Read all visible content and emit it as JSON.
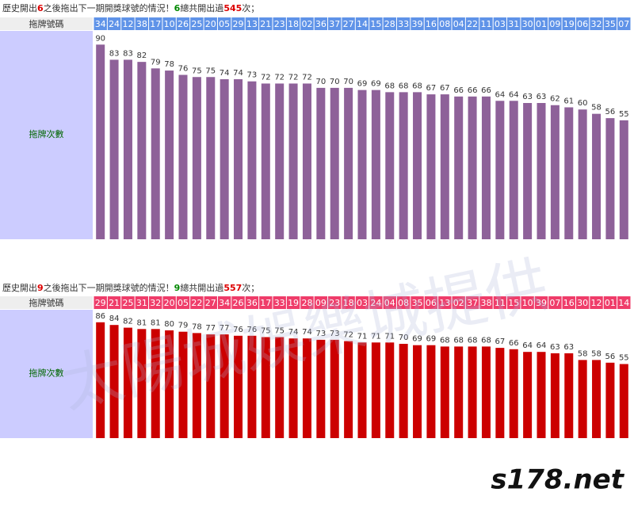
{
  "chart_data": [
    {
      "type": "bar",
      "title": [
        {
          "text": "歷史開出",
          "color": "#333333"
        },
        {
          "text": "6",
          "color": "#dd0000"
        },
        {
          "text": "之後拖出下一期開獎球號的情況！",
          "color": "#333333"
        },
        {
          "text": "6",
          "color": "#008800"
        },
        {
          "text": "總共開出過",
          "color": "#333333"
        },
        {
          "text": "545",
          "color": "#dd0000"
        },
        {
          "text": "次；",
          "color": "#333333"
        }
      ],
      "row_label": "拖牌號碼",
      "value_label": "拖牌次數",
      "categories": [
        "34",
        "24",
        "12",
        "38",
        "17",
        "10",
        "26",
        "25",
        "20",
        "05",
        "29",
        "13",
        "21",
        "23",
        "18",
        "02",
        "36",
        "37",
        "27",
        "14",
        "15",
        "28",
        "33",
        "39",
        "16",
        "08",
        "04",
        "22",
        "11",
        "03",
        "31",
        "30",
        "01",
        "09",
        "19",
        "06",
        "32",
        "35",
        "07"
      ],
      "values": [
        90,
        83,
        83,
        82,
        79,
        78,
        76,
        75,
        75,
        74,
        74,
        73,
        72,
        72,
        72,
        72,
        70,
        70,
        70,
        69,
        69,
        68,
        68,
        68,
        67,
        67,
        66,
        66,
        66,
        64,
        64,
        63,
        63,
        62,
        61,
        60,
        58,
        56,
        55
      ],
      "color": "#8e6199",
      "header_color": "#5f93e8"
    },
    {
      "type": "bar",
      "title": [
        {
          "text": "歷史開出",
          "color": "#333333"
        },
        {
          "text": "9",
          "color": "#dd0000"
        },
        {
          "text": "之後拖出下一期開獎球號的情況！",
          "color": "#333333"
        },
        {
          "text": "9",
          "color": "#008800"
        },
        {
          "text": "總共開出過",
          "color": "#333333"
        },
        {
          "text": "557",
          "color": "#dd0000"
        },
        {
          "text": "次；",
          "color": "#333333"
        }
      ],
      "row_label": "拖牌號碼",
      "value_label": "拖牌次數",
      "categories": [
        "29",
        "21",
        "25",
        "31",
        "32",
        "20",
        "05",
        "22",
        "27",
        "34",
        "26",
        "36",
        "17",
        "33",
        "19",
        "28",
        "09",
        "23",
        "18",
        "03",
        "24",
        "04",
        "08",
        "35",
        "06",
        "13",
        "02",
        "37",
        "38",
        "11",
        "15",
        "10",
        "39",
        "07",
        "16",
        "30",
        "12",
        "01",
        "14"
      ],
      "values": [
        86,
        84,
        82,
        81,
        81,
        80,
        79,
        78,
        77,
        77,
        76,
        76,
        75,
        75,
        74,
        74,
        73,
        73,
        72,
        71,
        71,
        71,
        70,
        69,
        69,
        68,
        68,
        68,
        68,
        67,
        66,
        64,
        64,
        63,
        63,
        58,
        58,
        56,
        55
      ],
      "color": "#cc0000",
      "header_color": "#ef3d6a"
    }
  ],
  "watermarks": [
    "太陽城娛樂城提供",
    "s178.net"
  ]
}
